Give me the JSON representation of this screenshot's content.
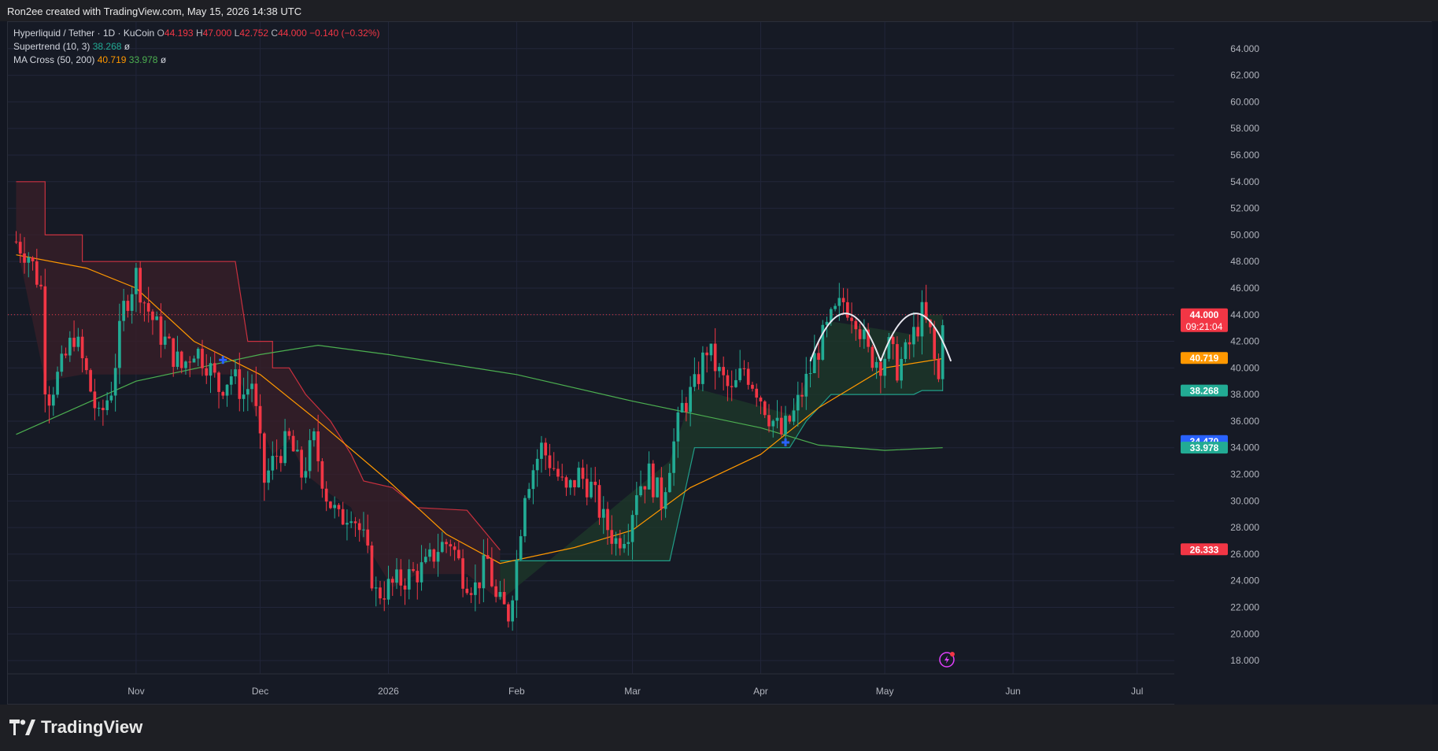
{
  "header": {
    "created_text": "Ron2ee created with TradingView.com, May 15, 2026 14:38 UTC"
  },
  "legend": {
    "symbol": "Hyperliquid / Tether · 1D · KuCoin",
    "open_label": "O",
    "open": "44.193",
    "high_label": "H",
    "high": "47.000",
    "low_label": "L",
    "low": "42.752",
    "close_label": "C",
    "close": "44.000",
    "change": "−0.140 (−0.32%)",
    "supertrend_label": "Supertrend (10, 3)",
    "supertrend_value": "38.268",
    "supertrend_suffix": "ø",
    "ma_label": "MA Cross (50, 200)",
    "ma50_value": "40.719",
    "ma200_value": "33.978",
    "ma_suffix": "ø"
  },
  "footer": {
    "brand": "TradingView"
  },
  "colors": {
    "up": "#22ab94",
    "down": "#f23645",
    "ma50": "#ff9800",
    "ma200": "#4caf50",
    "bull_fill": "#1e3a2a",
    "bear_fill": "#3a1f28",
    "grid": "#22263a"
  },
  "chart_data": {
    "type": "candlestick",
    "y_ticks": [
      "64.000",
      "62.000",
      "60.000",
      "58.000",
      "56.000",
      "54.000",
      "52.000",
      "50.000",
      "48.000",
      "46.000",
      "44.000",
      "42.000",
      "40.000",
      "38.000",
      "36.000",
      "34.000",
      "32.000",
      "30.000",
      "28.000",
      "26.000",
      "24.000",
      "22.000",
      "20.000",
      "18.000"
    ],
    "ylim": [
      17.0,
      66.0
    ],
    "x_labels": [
      {
        "date": "2025-11-01",
        "label": "Nov"
      },
      {
        "date": "2025-12-01",
        "label": "Dec"
      },
      {
        "date": "2026-01-01",
        "label": "2026"
      },
      {
        "date": "2026-02-01",
        "label": "Feb"
      },
      {
        "date": "2026-03-01",
        "label": "Mar"
      },
      {
        "date": "2026-04-01",
        "label": "Apr"
      },
      {
        "date": "2026-05-01",
        "label": "May"
      },
      {
        "date": "2026-06-01",
        "label": "Jun"
      },
      {
        "date": "2026-07-01",
        "label": "Jul"
      }
    ],
    "price_labels": [
      {
        "value": 44.0,
        "text": "44.000",
        "sub": "09:21:04",
        "color": "#f23645"
      },
      {
        "value": 40.719,
        "text": "40.719",
        "color": "#ff9800"
      },
      {
        "value": 38.268,
        "text": "38.268",
        "color": "#22ab94"
      },
      {
        "value": 34.47,
        "text": "34.470",
        "color": "#2962ff"
      },
      {
        "value": 33.978,
        "text": "33.978",
        "color": "#22ab94"
      },
      {
        "value": 26.333,
        "text": "26.333",
        "color": "#f23645"
      }
    ],
    "close_series": [
      [
        "2025-10-03",
        49.5
      ],
      [
        "2025-10-06",
        48.5
      ],
      [
        "2025-10-09",
        46.0
      ],
      [
        "2025-10-10",
        39.0
      ],
      [
        "2025-10-11",
        38.0
      ],
      [
        "2025-10-14",
        40.0
      ],
      [
        "2025-10-17",
        42.5
      ],
      [
        "2025-10-20",
        39.5
      ],
      [
        "2025-10-23",
        36.0
      ],
      [
        "2025-10-26",
        38.5
      ],
      [
        "2025-10-29",
        44.5
      ],
      [
        "2025-11-01",
        47.0
      ],
      [
        "2025-11-03",
        45.0
      ],
      [
        "2025-11-06",
        43.0
      ],
      [
        "2025-11-09",
        41.5
      ],
      [
        "2025-11-12",
        40.0
      ],
      [
        "2025-11-15",
        41.5
      ],
      [
        "2025-11-18",
        40.5
      ],
      [
        "2025-11-21",
        38.5
      ],
      [
        "2025-11-24",
        39.5
      ],
      [
        "2025-11-27",
        38.0
      ],
      [
        "2025-11-29",
        39.0
      ],
      [
        "2025-12-02",
        31.5
      ],
      [
        "2025-12-05",
        33.5
      ],
      [
        "2025-12-08",
        34.5
      ],
      [
        "2025-12-11",
        32.0
      ],
      [
        "2025-12-14",
        34.5
      ],
      [
        "2025-12-17",
        30.5
      ],
      [
        "2025-12-20",
        28.5
      ],
      [
        "2025-12-23",
        29.5
      ],
      [
        "2025-12-26",
        27.0
      ],
      [
        "2025-12-29",
        23.0
      ],
      [
        "2026-01-01",
        23.5
      ],
      [
        "2026-01-04",
        24.0
      ],
      [
        "2026-01-07",
        24.5
      ],
      [
        "2026-01-10",
        25.0
      ],
      [
        "2026-01-13",
        26.5
      ],
      [
        "2026-01-16",
        27.0
      ],
      [
        "2026-01-19",
        24.5
      ],
      [
        "2026-01-22",
        23.5
      ],
      [
        "2026-01-25",
        25.5
      ],
      [
        "2026-01-27",
        22.5
      ],
      [
        "2026-01-30",
        21.5
      ],
      [
        "2026-02-01",
        25.5
      ],
      [
        "2026-02-03",
        31.0
      ],
      [
        "2026-02-05",
        32.5
      ],
      [
        "2026-02-07",
        34.0
      ],
      [
        "2026-02-10",
        32.5
      ],
      [
        "2026-02-13",
        30.5
      ],
      [
        "2026-02-16",
        32.0
      ],
      [
        "2026-02-19",
        31.0
      ],
      [
        "2026-02-22",
        28.5
      ],
      [
        "2026-02-25",
        27.0
      ],
      [
        "2026-02-28",
        28.0
      ],
      [
        "2026-03-02",
        31.0
      ],
      [
        "2026-03-05",
        32.0
      ],
      [
        "2026-03-08",
        30.0
      ],
      [
        "2026-03-10",
        33.0
      ],
      [
        "2026-03-13",
        37.0
      ],
      [
        "2026-03-16",
        38.5
      ],
      [
        "2026-03-19",
        41.5
      ],
      [
        "2026-03-22",
        39.5
      ],
      [
        "2026-03-25",
        38.0
      ],
      [
        "2026-03-28",
        40.0
      ],
      [
        "2026-03-31",
        38.5
      ],
      [
        "2026-04-03",
        36.5
      ],
      [
        "2026-04-06",
        35.0
      ],
      [
        "2026-04-09",
        36.5
      ],
      [
        "2026-04-12",
        39.0
      ],
      [
        "2026-04-15",
        41.5
      ],
      [
        "2026-04-18",
        43.5
      ],
      [
        "2026-04-21",
        45.0
      ],
      [
        "2026-04-24",
        44.0
      ],
      [
        "2026-04-27",
        41.0
      ],
      [
        "2026-04-30",
        40.5
      ],
      [
        "2026-05-02",
        41.5
      ],
      [
        "2026-05-04",
        40.0
      ],
      [
        "2026-05-06",
        41.0
      ],
      [
        "2026-05-08",
        42.5
      ],
      [
        "2026-05-10",
        44.0
      ],
      [
        "2026-05-12",
        42.5
      ],
      [
        "2026-05-13",
        40.5
      ],
      [
        "2026-05-14",
        39.0
      ],
      [
        "2026-05-15",
        44.0
      ]
    ],
    "ma50_series": [
      [
        "2025-10-03",
        48.5
      ],
      [
        "2025-10-20",
        47.5
      ],
      [
        "2025-11-01",
        46.0
      ],
      [
        "2025-11-15",
        42.0
      ],
      [
        "2025-12-01",
        39.5
      ],
      [
        "2025-12-15",
        36.0
      ],
      [
        "2026-01-01",
        31.5
      ],
      [
        "2026-01-15",
        27.5
      ],
      [
        "2026-01-28",
        25.3
      ],
      [
        "2026-02-15",
        26.5
      ],
      [
        "2026-03-01",
        27.8
      ],
      [
        "2026-03-15",
        31.0
      ],
      [
        "2026-04-01",
        33.5
      ],
      [
        "2026-04-15",
        37.0
      ],
      [
        "2026-05-01",
        40.0
      ],
      [
        "2026-05-15",
        40.7
      ]
    ],
    "ma200_series": [
      [
        "2025-10-03",
        35.0
      ],
      [
        "2025-11-01",
        39.0
      ],
      [
        "2025-12-01",
        41.0
      ],
      [
        "2025-12-15",
        41.7
      ],
      [
        "2026-01-01",
        41.0
      ],
      [
        "2026-02-01",
        39.5
      ],
      [
        "2026-03-01",
        37.5
      ],
      [
        "2026-04-01",
        35.5
      ],
      [
        "2026-04-15",
        34.2
      ],
      [
        "2026-05-01",
        33.8
      ],
      [
        "2026-05-15",
        34.0
      ]
    ],
    "supertrend_bear": [
      [
        "2025-10-03",
        54.0
      ],
      [
        "2025-10-10",
        54.0
      ],
      [
        "2025-10-10",
        50.0
      ],
      [
        "2025-10-19",
        50.0
      ],
      [
        "2025-10-19",
        48.0
      ],
      [
        "2025-11-25",
        48.0
      ],
      [
        "2025-11-28",
        42.0
      ],
      [
        "2025-12-04",
        42.0
      ],
      [
        "2025-12-04",
        40.0
      ],
      [
        "2025-12-08",
        40.0
      ],
      [
        "2025-12-12",
        38.0
      ],
      [
        "2025-12-18",
        36.0
      ],
      [
        "2025-12-23",
        33.5
      ],
      [
        "2025-12-26",
        31.5
      ],
      [
        "2026-01-02",
        31.0
      ],
      [
        "2026-01-08",
        29.5
      ],
      [
        "2026-01-20",
        29.3
      ],
      [
        "2026-01-28",
        26.3
      ]
    ],
    "supertrend_bull": [
      [
        "2026-01-28",
        25.5
      ],
      [
        "2026-03-10",
        25.5
      ],
      [
        "2026-03-16",
        34.0
      ],
      [
        "2026-04-08",
        34.0
      ],
      [
        "2026-04-12",
        36.0
      ],
      [
        "2026-04-18",
        38.0
      ],
      [
        "2026-05-08",
        38.0
      ],
      [
        "2026-05-10",
        38.3
      ],
      [
        "2026-05-15",
        38.3
      ]
    ],
    "cross_markers": [
      {
        "date": "2025-11-22",
        "value": 40.6
      },
      {
        "date": "2026-04-07",
        "value": 34.4
      }
    ],
    "annotation_arcs": [
      {
        "start": "2026-04-13",
        "end": "2026-04-30",
        "low": 40.5,
        "peak": 45.0
      },
      {
        "start": "2026-04-30",
        "end": "2026-05-17",
        "low": 40.5,
        "peak": 45.0
      }
    ]
  }
}
